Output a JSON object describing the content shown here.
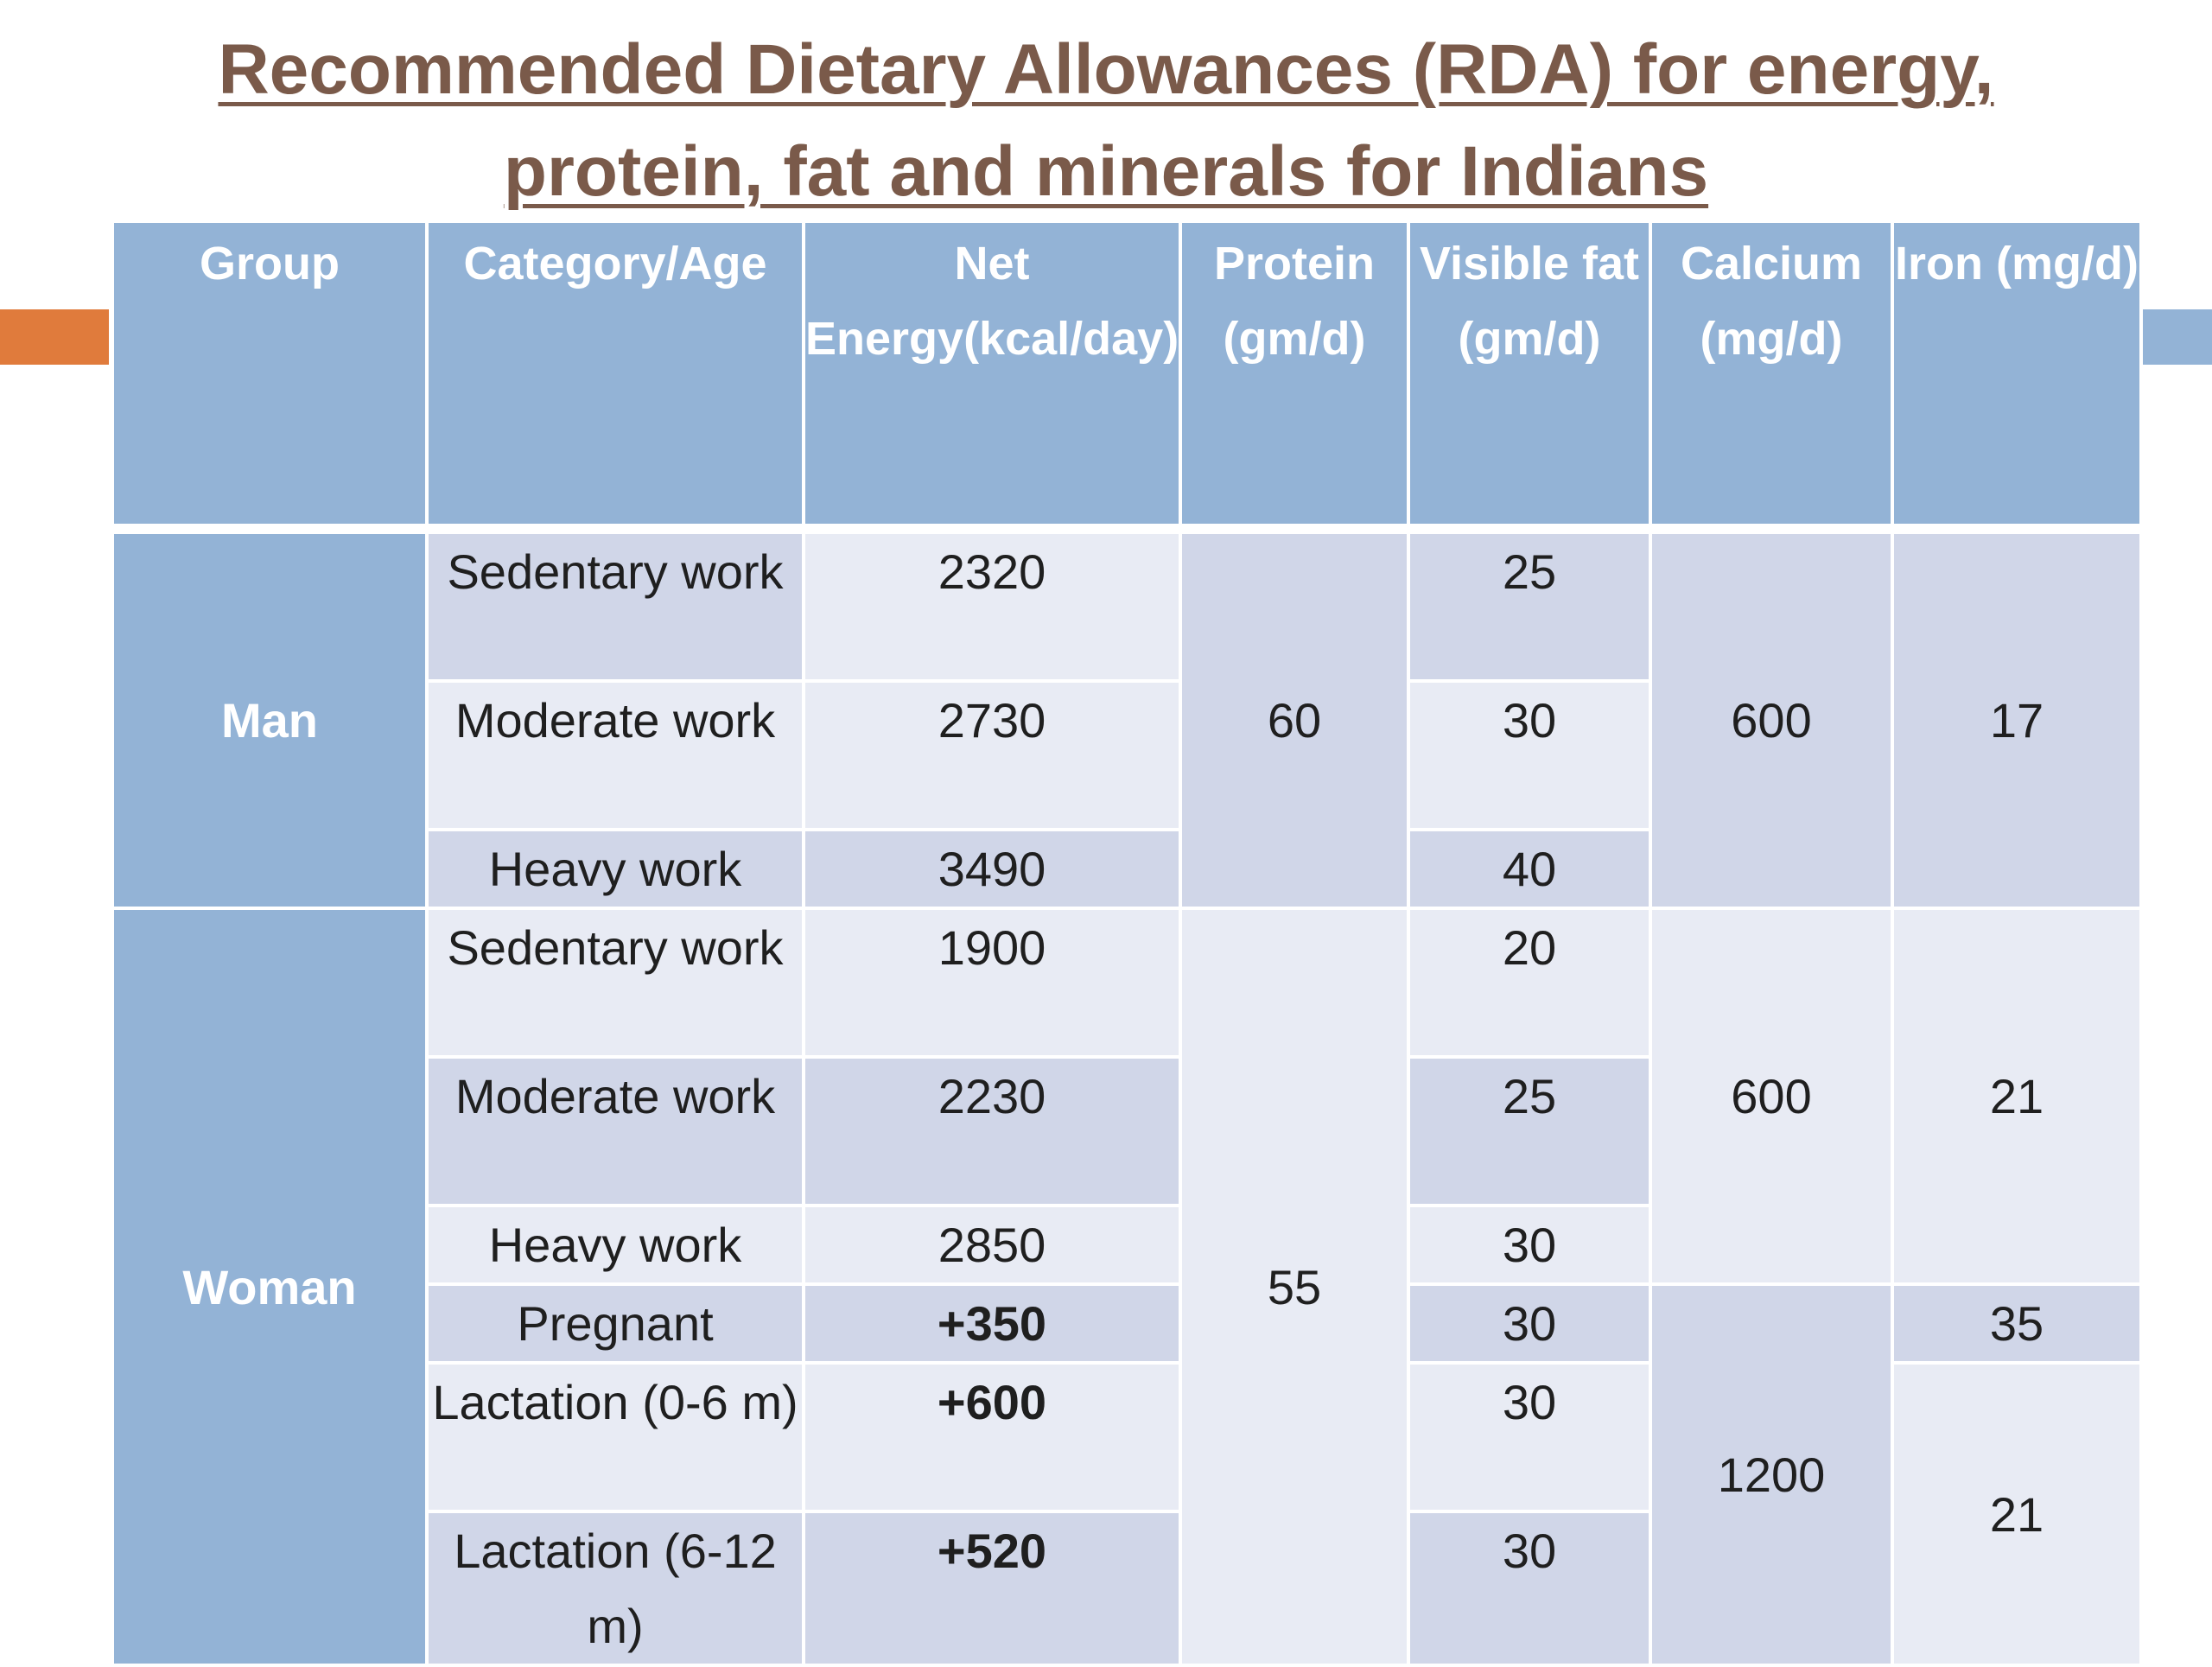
{
  "title_line1": "Recommended Dietary Allowances (RDA) for energy,",
  "title_line2": "protein, fat and minerals for Indians",
  "headers": {
    "group": "Group",
    "category": "Category/Age",
    "energy": "Net Energy(kcal/day)",
    "protein": "Protein (gm/d)",
    "fat": "Visible fat (gm/d)",
    "calcium": "Calcium (mg/d)",
    "iron": "Iron (mg/d)"
  },
  "man": {
    "group": "Man",
    "protein": "60",
    "calcium": "600",
    "iron": "17",
    "rows": [
      {
        "category": "Sedentary work",
        "energy": "2320",
        "fat": "25"
      },
      {
        "category": "Moderate work",
        "energy": "2730",
        "fat": "30"
      },
      {
        "category": "Heavy work",
        "energy": "3490",
        "fat": "40"
      }
    ]
  },
  "woman": {
    "group": "Woman",
    "protein": "55",
    "calcium": "600",
    "calcium_pl": "1200",
    "iron": "21",
    "iron_pregnant": "35",
    "iron_lactation": "21",
    "rows": [
      {
        "category": "Sedentary work",
        "energy": "1900",
        "fat": "20"
      },
      {
        "category": "Moderate work",
        "energy": "2230",
        "fat": "25"
      },
      {
        "category": "Heavy work",
        "energy": "2850",
        "fat": "30"
      },
      {
        "category": "Pregnant",
        "energy": "+350",
        "fat": "30"
      },
      {
        "category": "Lactation (0-6 m)",
        "energy": "+600",
        "fat": "30"
      },
      {
        "category": "Lactation (6-12 m)",
        "energy": "+520",
        "fat": "30"
      }
    ]
  },
  "colors": {
    "header": "#93b3d6",
    "row_dark": "#d0d6e8",
    "row_light": "#e8ebf4",
    "title": "#7a5a4a",
    "accent": "#e07b3c"
  }
}
